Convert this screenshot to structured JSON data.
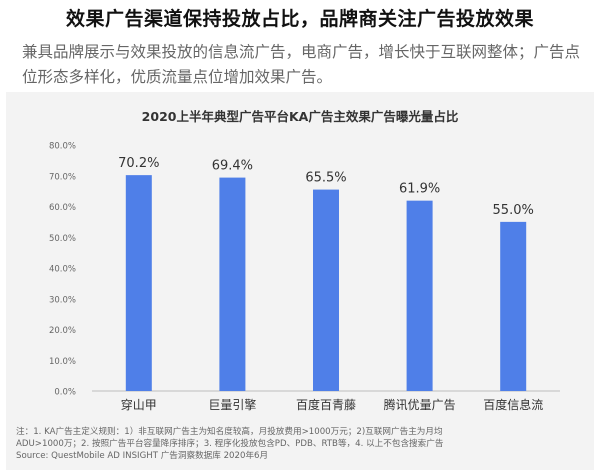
{
  "headline": "效果广告渠道保持投放占比，品牌商关注广告投放效果",
  "subtitle": "兼具品牌展示与效果投放的信息流广告，电商广告，增长快于互联网整体；广告点位形态多样化，优质流量点位增加效果广告。",
  "chart_data": {
    "type": "bar",
    "title": "2020上半年典型广告平台KA广告主效果广告曝光量占比",
    "categories": [
      "穿山甲",
      "巨量引擎",
      "百度百青藤",
      "腾讯优量广告",
      "百度信息流"
    ],
    "values": [
      70.2,
      69.4,
      65.5,
      61.9,
      55.0
    ],
    "value_labels": [
      "70.2%",
      "69.4%",
      "65.5%",
      "61.9%",
      "55.0%"
    ],
    "ylim": [
      0,
      80
    ],
    "yticks": [
      "0.0%",
      "10.0%",
      "20.0%",
      "30.0%",
      "40.0%",
      "50.0%",
      "60.0%",
      "70.0%",
      "80.0%"
    ],
    "grid": false,
    "bar_color": "#4f7fe8",
    "xlabel": "",
    "ylabel": ""
  },
  "notes": {
    "line1": "注：1. KA广告主定义规则：1）非互联网广告主为知名度较高，月投放费用>1000万元；2)互联网广告主为月均",
    "line2": "ADU>1000万；2. 按照广告平台容量降序排序；3. 程序化投放包含PD、PDB、RTB等，4. 以上不包含搜索广告",
    "source": "Source: QuestMobile AD INSIGHT 广告洞察数据库 2020年6月"
  }
}
